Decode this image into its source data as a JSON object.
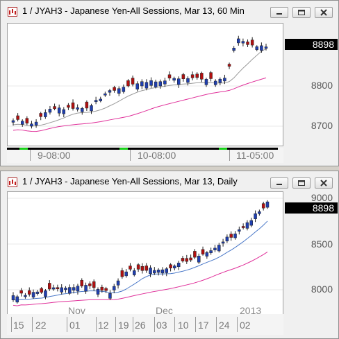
{
  "window1": {
    "title": "1 / JYAH3 - Japanese Yen-All Sessions, Mar 13, 60 Min",
    "price_tag": "8898",
    "y_labels": [
      "8800",
      "8700"
    ],
    "x_labels": [
      "9-08:00",
      "10-08:00",
      "11-05:00"
    ]
  },
  "window2": {
    "title": "1 / JYAH3 - Japanese Yen-All Sessions, Mar 13, Daily",
    "price_tag": "8898",
    "y_labels": [
      "9000",
      "8500",
      "8000"
    ],
    "x_labels": [
      "15",
      "22",
      "01",
      "12",
      "19",
      "26",
      "03",
      "10",
      "17",
      "24",
      "02"
    ],
    "month_labels": [
      "Nov",
      "Dec",
      "2013"
    ]
  },
  "buttons": {
    "minimize": "minimize",
    "maximize": "maximize",
    "close": "close"
  },
  "colors": {
    "up_candle": "#1f3fb0",
    "down_candle": "#b01010",
    "short_ma": "#9a9a9a",
    "short_ma_daily": "#4a78c8",
    "long_ma": "#e0309a",
    "session_marker": "#19d219"
  }
}
